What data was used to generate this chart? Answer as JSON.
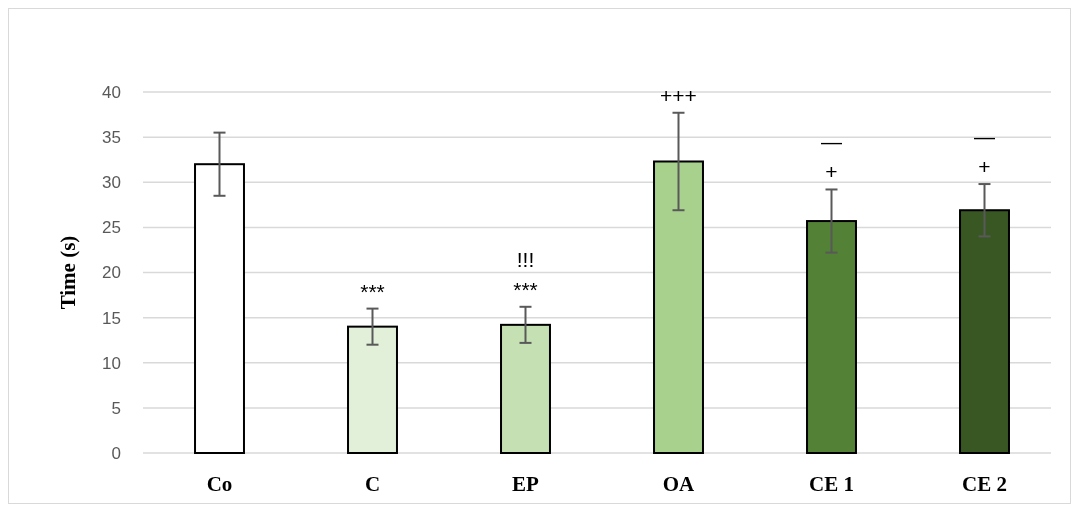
{
  "chart_data": {
    "type": "bar",
    "ylabel": "Time (s)",
    "categories": [
      "Co",
      "C",
      "EP",
      "OA",
      "CE 1",
      "CE 2"
    ],
    "values": [
      32,
      14,
      14.2,
      32.3,
      25.7,
      26.9
    ],
    "colors": [
      "#ffffff",
      "#e2efd9",
      "#c5e0b3",
      "#a9d18e",
      "#538135",
      "#385723"
    ],
    "errors": [
      3.5,
      2,
      2,
      5.4,
      3.5,
      2.9
    ],
    "ylim": [
      0,
      40
    ],
    "yticks": [
      0,
      5,
      10,
      15,
      20,
      25,
      30,
      35,
      40
    ],
    "grid": "y",
    "legend": false,
    "annotations": [
      "***",
      "***",
      "!!!",
      "+++",
      "+",
      "—",
      "+",
      "—"
    ]
  }
}
